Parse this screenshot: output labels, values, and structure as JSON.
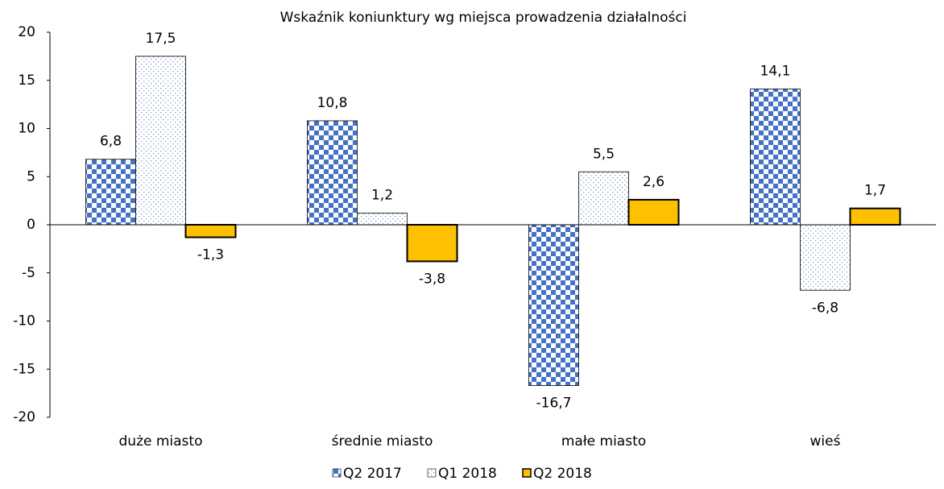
{
  "chart_data": {
    "type": "bar",
    "title": "Wskaźnik koniunktury wg miejsca prowadzenia działalności",
    "categories": [
      "duże miasto",
      "średnie miasto",
      "małe miasto",
      "wieś"
    ],
    "series": [
      {
        "name": "Q2 2017",
        "color": "#4472c4",
        "pattern": "checker",
        "values": [
          6.8,
          10.8,
          -16.7,
          14.1
        ],
        "value_labels": [
          "6,8",
          "10,8",
          "-16,7",
          "14,1"
        ]
      },
      {
        "name": "Q1 2018",
        "color": "#7f9fd0",
        "pattern": "dots",
        "values": [
          17.5,
          1.2,
          5.5,
          -6.8
        ],
        "value_labels": [
          "17,5",
          "1,2",
          "5,5",
          "-6,8"
        ]
      },
      {
        "name": "Q2 2018",
        "color": "#ffc000",
        "pattern": "solid",
        "values": [
          -1.3,
          -3.8,
          2.6,
          1.7
        ],
        "value_labels": [
          "-1,3",
          "-3,8",
          "2,6",
          "1,7"
        ]
      }
    ],
    "ylim": [
      -20,
      20
    ],
    "yticks": [
      20,
      15,
      10,
      5,
      0,
      -5,
      -10,
      -15,
      -20
    ],
    "grid": false,
    "legend": "bottom"
  }
}
